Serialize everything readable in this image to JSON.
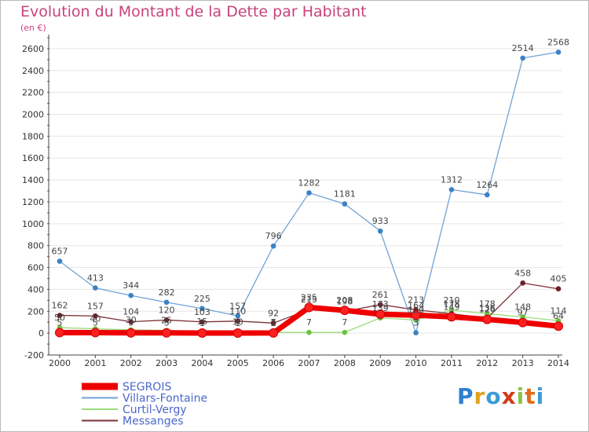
{
  "header": {
    "title": "Evolution du Montant de la Dette par Habitant",
    "unit": "(en €)"
  },
  "logo": {
    "text": "Proxiti"
  },
  "chart_data": {
    "type": "line",
    "title": "Evolution du Montant de la Dette par Habitant",
    "ylabel": "(en €)",
    "xlabel": "",
    "ylim": [
      -200,
      2700
    ],
    "yticks": [
      -200,
      0,
      200,
      400,
      600,
      800,
      1000,
      1200,
      1400,
      1600,
      1800,
      2000,
      2200,
      2400,
      2600
    ],
    "categories": [
      "2000",
      "2001",
      "2002",
      "2003",
      "2004",
      "2005",
      "2006",
      "2007",
      "2008",
      "2009",
      "2010",
      "2011",
      "2012",
      "2013",
      "2014"
    ],
    "legend_position": "bottom-left",
    "series": [
      {
        "name": "Villars-Fontaine",
        "color": "#6fa3d6",
        "marker": "#3b82c4",
        "width": 1.3,
        "values": [
          657,
          413,
          344,
          282,
          225,
          157,
          796,
          1282,
          1181,
          933,
          3,
          1312,
          1264,
          2514,
          2568
        ],
        "labels": [
          "657",
          "413",
          "344",
          "282",
          "225",
          "157",
          "796",
          "1282",
          "1181",
          "933",
          "3",
          "1312",
          "1264",
          "2514",
          "2568"
        ]
      },
      {
        "name": "Curtil-Vergy",
        "color": "#9bdc7c",
        "marker": "#6cc23d",
        "width": 1.3,
        "values": [
          50,
          40,
          30,
          25,
          15,
          10,
          7,
          7,
          7,
          139,
          120,
          210,
          178,
          148,
          114
        ],
        "labels": [
          "50",
          "40",
          "30",
          "25",
          "15",
          "10",
          "7",
          "7",
          "7",
          "139",
          "120",
          "210",
          "178",
          "148",
          "114"
        ]
      },
      {
        "name": "Messanges",
        "color": "#7d3038",
        "marker": "#6b1f28",
        "width": 1.3,
        "values": [
          162,
          157,
          104,
          120,
          103,
          110,
          92,
          215,
          198,
          261,
          213,
          178,
          136,
          458,
          405
        ],
        "labels": [
          "162",
          "157",
          "104",
          "120",
          "103",
          "110",
          "92",
          "215",
          "198",
          "261",
          "213",
          "178",
          "136",
          "458",
          "405"
        ]
      },
      {
        "name": "SEGROIS",
        "color": "#ee0000",
        "marker": "#ff2020",
        "width": 7,
        "values": [
          5,
          5,
          3,
          3,
          1,
          1,
          2,
          235,
          208,
          173,
          164,
          149,
          126,
          97,
          64
        ],
        "labels": [
          "5",
          "5",
          "3",
          "3",
          "1",
          "1",
          "2",
          "235",
          "208",
          "173",
          "164",
          "149",
          "126",
          "97",
          "64"
        ]
      }
    ]
  }
}
